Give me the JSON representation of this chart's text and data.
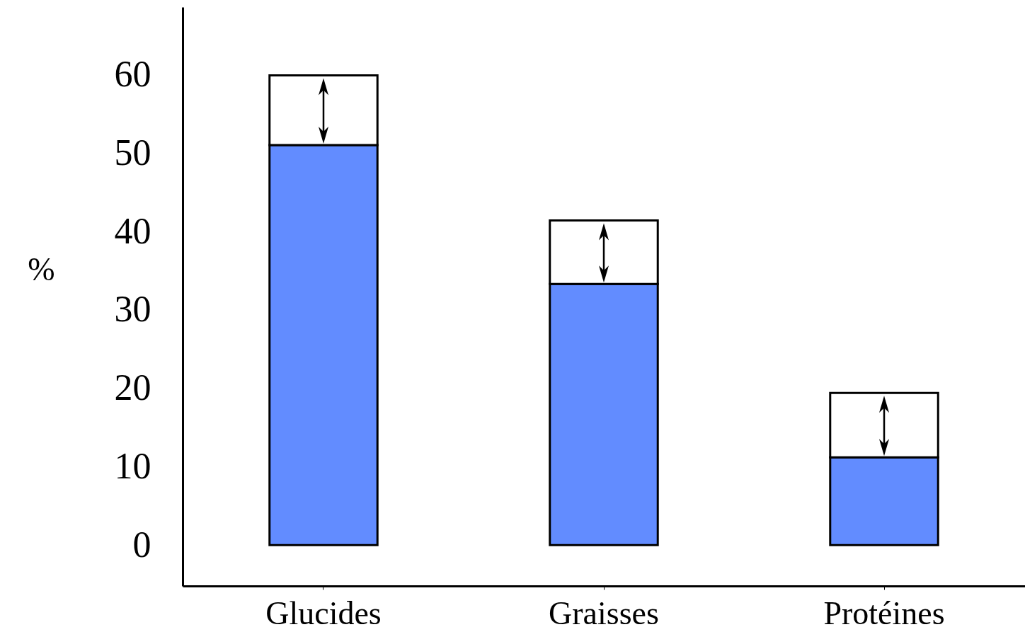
{
  "chart_data": {
    "type": "bar",
    "stacked": true,
    "categories": [
      "Glucides",
      "Graisses",
      "Protéines"
    ],
    "series": [
      {
        "color": "#628cff",
        "values": [
          51,
          33.3,
          11.2
        ]
      },
      {
        "color": "#ffffff",
        "values": [
          8.9,
          8.1,
          8.2
        ]
      }
    ],
    "ylabel": "%",
    "ylim": [
      -5.2,
      68.6
    ],
    "yticks": [
      0,
      10,
      20,
      30,
      40,
      50,
      60
    ],
    "grid": false
  }
}
